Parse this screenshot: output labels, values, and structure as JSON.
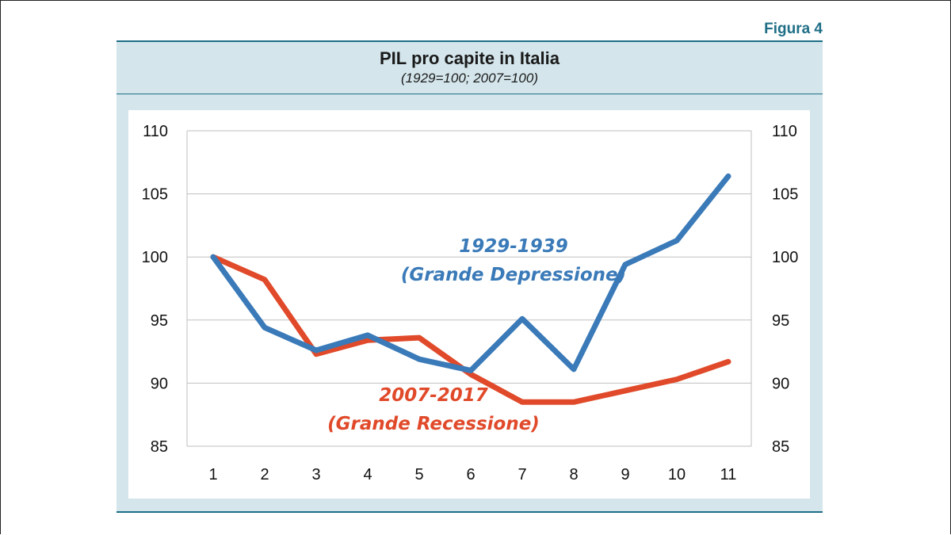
{
  "figure_label": "Figura 4",
  "chart_data": {
    "type": "line",
    "title": "PIL pro capite in Italia",
    "subtitle": "(1929=100; 2007=100)",
    "xlabel": "",
    "ylabel": "",
    "x": [
      1,
      2,
      3,
      4,
      5,
      6,
      7,
      8,
      9,
      10,
      11
    ],
    "ylim": [
      85,
      110
    ],
    "yticks": [
      85,
      90,
      95,
      100,
      105,
      110
    ],
    "grid": true,
    "secondary_axis": true,
    "series": [
      {
        "name": "1929-1939",
        "label_line1": "1929-1939",
        "label_line2": "(Grande Depressione)",
        "color": "#3a7ab8",
        "values": [
          100,
          94.4,
          92.6,
          93.8,
          91.9,
          91.0,
          95.1,
          91.1,
          99.4,
          101.3,
          106.4
        ]
      },
      {
        "name": "2007-2017",
        "label_line1": "2007-2017",
        "label_line2": "(Grande Recessione)",
        "color": "#e04a2a",
        "values": [
          100,
          98.2,
          92.3,
          93.4,
          93.6,
          90.7,
          88.5,
          88.5,
          89.4,
          90.3,
          91.7
        ]
      }
    ]
  }
}
